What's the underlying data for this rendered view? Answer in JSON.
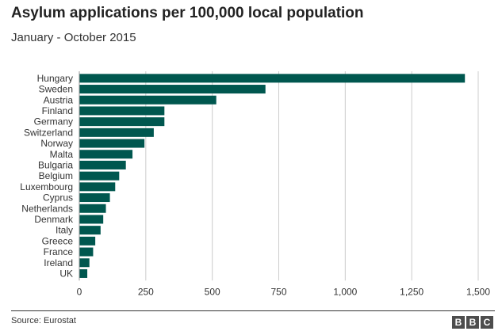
{
  "chart_data": {
    "type": "bar",
    "orientation": "horizontal",
    "title": "Asylum applications per 100,000 local population",
    "subtitle": "January - October 2015",
    "categories": [
      "Hungary",
      "Sweden",
      "Austria",
      "Finland",
      "Germany",
      "Switzerland",
      "Norway",
      "Malta",
      "Bulgaria",
      "Belgium",
      "Luxembourg",
      "Cyprus",
      "Netherlands",
      "Denmark",
      "Italy",
      "Greece",
      "France",
      "Ireland",
      "UK"
    ],
    "values": [
      1450,
      700,
      515,
      320,
      320,
      280,
      245,
      200,
      175,
      150,
      135,
      115,
      100,
      90,
      80,
      60,
      52,
      38,
      30
    ],
    "xlim": [
      0,
      1500
    ],
    "xticks": [
      0,
      250,
      500,
      750,
      1000,
      1250,
      1500
    ],
    "xtick_labels": [
      "0",
      "250",
      "500",
      "750",
      "1,000",
      "1,250",
      "1,500"
    ],
    "grid": true,
    "bar_color": "#00574f"
  },
  "footer": {
    "source": "Source: Eurostat",
    "logo_letters": [
      "B",
      "B",
      "C"
    ]
  }
}
